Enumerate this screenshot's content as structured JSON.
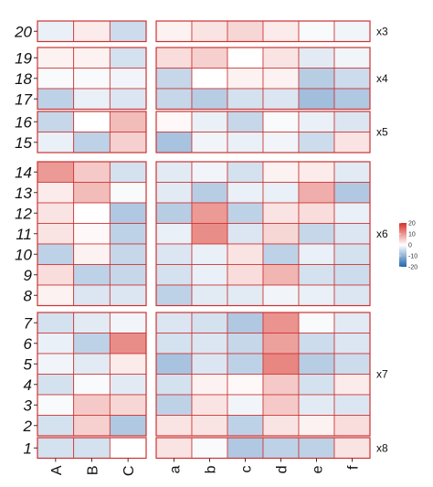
{
  "chart_data": {
    "type": "heatmap",
    "title": "",
    "xlabel": "",
    "ylabel": "",
    "column_groups": [
      [
        "A",
        "B",
        "C"
      ],
      [
        "a",
        "b",
        "c",
        "d",
        "e",
        "f"
      ]
    ],
    "columns": [
      "A",
      "B",
      "C",
      "a",
      "b",
      "c",
      "d",
      "e",
      "f"
    ],
    "row_groups": [
      {
        "name": "x3",
        "rows": [
          "20"
        ]
      },
      {
        "name": "x4",
        "rows": [
          "19",
          "18",
          "17"
        ]
      },
      {
        "name": "x5",
        "rows": [
          "16",
          "15"
        ]
      },
      {
        "name": "x6",
        "rows": [
          "14",
          "13",
          "12",
          "11",
          "10",
          "9",
          "8"
        ]
      },
      {
        "name": "x7",
        "rows": [
          "7",
          "6",
          "5",
          "4",
          "3",
          "2"
        ]
      },
      {
        "name": "x8",
        "rows": [
          "1"
        ]
      }
    ],
    "values": {
      "20": [
        -3,
        3,
        -7,
        2,
        4,
        6,
        3,
        -1,
        -2
      ],
      "19": [
        2,
        2,
        -6,
        5,
        7,
        0,
        4,
        -4,
        -2
      ],
      "18": [
        -1,
        -1,
        -2,
        -8,
        0,
        2,
        2,
        -10,
        -7
      ],
      "17": [
        -9,
        -3,
        -5,
        -8,
        -10,
        -6,
        -5,
        -13,
        -11
      ],
      "16": [
        -8,
        0,
        10,
        1,
        -3,
        -8,
        -1,
        -3,
        -5
      ],
      "15": [
        -3,
        -9,
        7,
        -12,
        -2,
        -3,
        -2,
        -7,
        4
      ],
      "14": [
        15,
        8,
        -6,
        -4,
        -2,
        -6,
        2,
        3,
        -4
      ],
      "13": [
        3,
        10,
        -1,
        -4,
        -10,
        -3,
        -3,
        12,
        -11
      ],
      "12": [
        4,
        0,
        -11,
        -10,
        15,
        -9,
        4,
        5,
        -3
      ],
      "11": [
        4,
        1,
        -9,
        -3,
        17,
        -5,
        6,
        -8,
        -5
      ],
      "10": [
        -9,
        2,
        -8,
        -5,
        -3,
        4,
        -9,
        -3,
        -6
      ],
      "9": [
        5,
        -9,
        -8,
        -6,
        -3,
        5,
        11,
        -6,
        -7
      ],
      "8": [
        2,
        -5,
        -5,
        -9,
        -4,
        -4,
        -2,
        -3,
        -5
      ],
      "7": [
        -6,
        -4,
        -2,
        -5,
        -6,
        -11,
        16,
        -1,
        -4
      ],
      "6": [
        -3,
        -9,
        17,
        -6,
        -5,
        -8,
        14,
        -7,
        -5
      ],
      "5": [
        -2,
        -4,
        3,
        -12,
        -5,
        -9,
        18,
        -10,
        -7
      ],
      "4": [
        -6,
        -1,
        -4,
        -6,
        2,
        1,
        8,
        -6,
        3
      ],
      "3": [
        -1,
        8,
        6,
        -9,
        4,
        -2,
        8,
        -4,
        -5
      ],
      "2": [
        -6,
        7,
        -11,
        4,
        4,
        -9,
        4,
        2,
        5
      ],
      "1": [
        -6,
        -6,
        0,
        4,
        -1,
        -11,
        -9,
        -9,
        4
      ]
    },
    "legend": {
      "title": "",
      "min": -20,
      "max": 20,
      "ticks": [
        -20,
        -10,
        0,
        10,
        20
      ],
      "placement": "right"
    },
    "colors": {
      "low": "#2166ac",
      "mid": "#ffffff",
      "high": "#d73027",
      "border": "#cc3333"
    },
    "grid": false
  }
}
